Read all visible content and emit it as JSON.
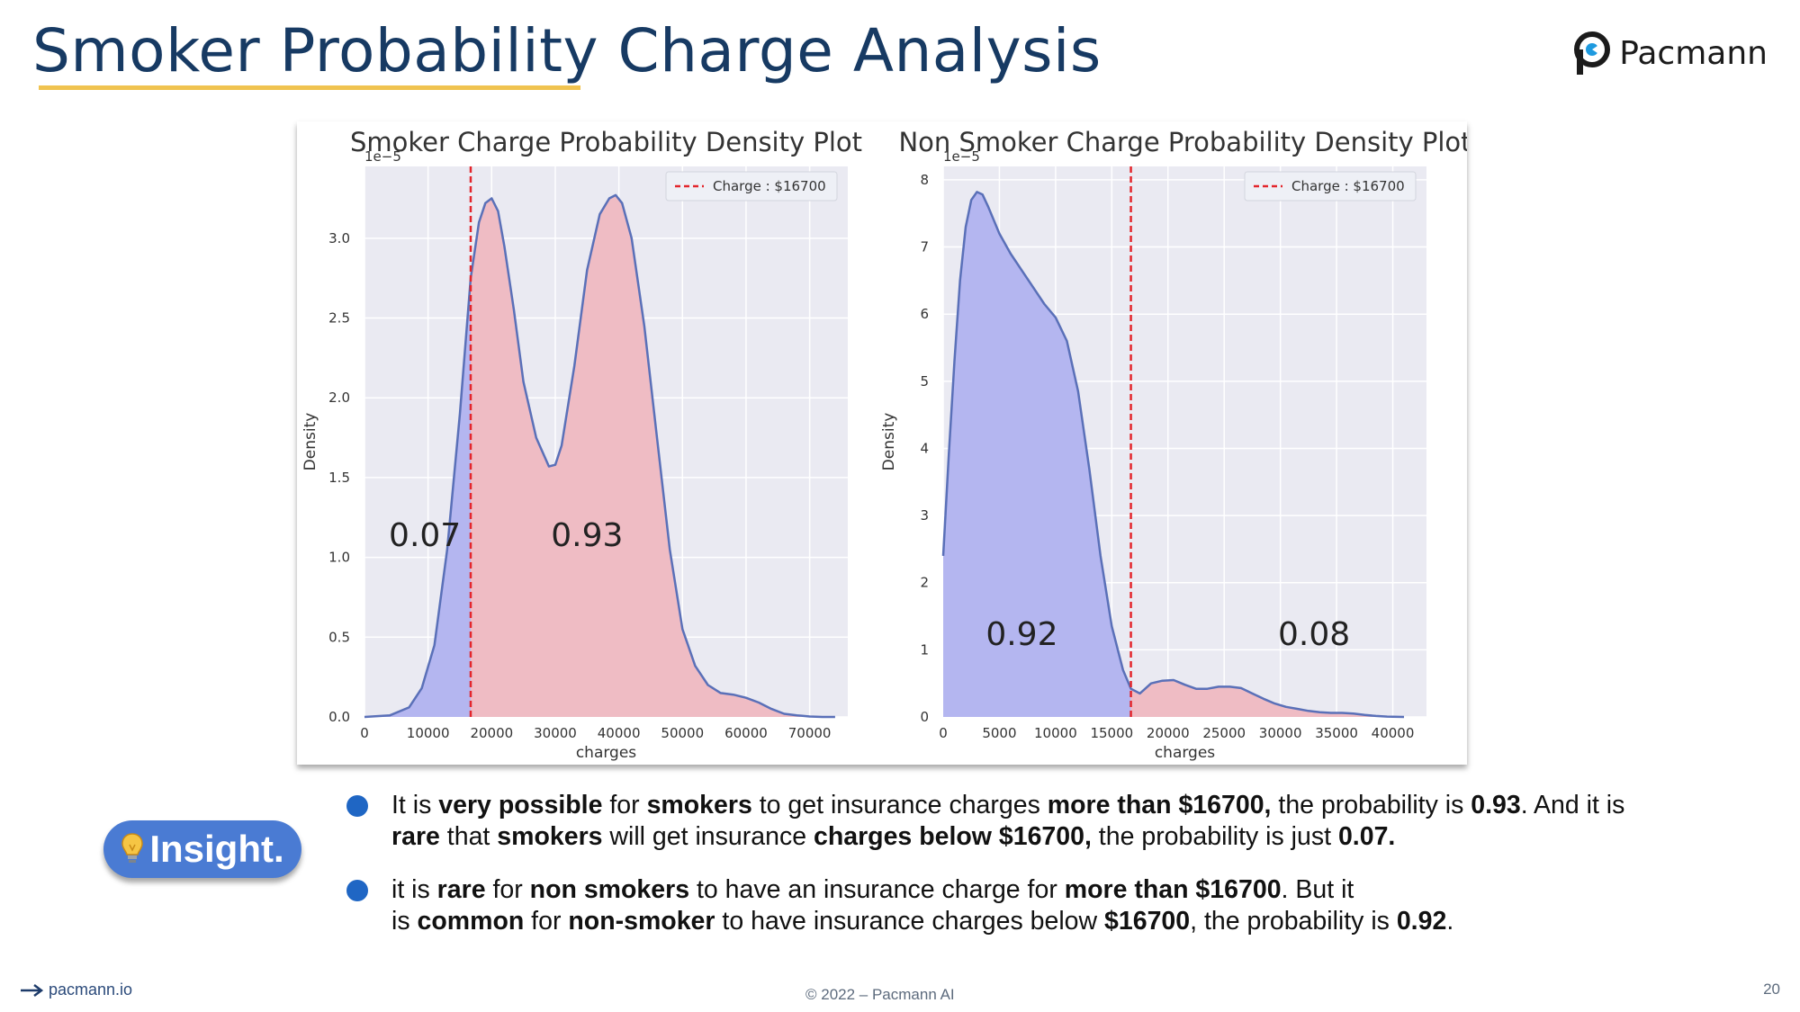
{
  "slide": {
    "title": "Smoker Probability Charge Analysis",
    "brand": "Pacmann",
    "insight_label": "Insight.",
    "footer_left": "pacmann.io",
    "footer_center": "© 2022 – Pacmann AI",
    "page_number": "20"
  },
  "bullets": [
    [
      {
        "t": "It is ",
        "b": false
      },
      {
        "t": "very possible",
        "b": true
      },
      {
        "t": " for ",
        "b": false
      },
      {
        "t": "smokers",
        "b": true
      },
      {
        "t": " to get insurance charges ",
        "b": false
      },
      {
        "t": "more than $16700,",
        "b": true
      },
      {
        "t": " the probability is ",
        "b": false
      },
      {
        "t": "0.93",
        "b": true
      },
      {
        "t": ". And it is ",
        "b": false
      },
      {
        "t": "rare",
        "b": true
      },
      {
        "t": " that ",
        "b": false
      },
      {
        "t": "smokers",
        "b": true
      },
      {
        "t": " will get insurance ",
        "b": false
      },
      {
        "t": "charges below $16700,",
        "b": true
      },
      {
        "t": " the probability is just ",
        "b": false
      },
      {
        "t": "0.07.",
        "b": true
      }
    ],
    [
      {
        "t": "it is ",
        "b": false
      },
      {
        "t": "rare",
        "b": true
      },
      {
        "t": " for ",
        "b": false
      },
      {
        "t": "non smokers",
        "b": true
      },
      {
        "t": " to have an insurance charge for ",
        "b": false
      },
      {
        "t": "more than $16700",
        "b": true
      },
      {
        "t": ". But it\nis ",
        "b": false
      },
      {
        "t": "common",
        "b": true
      },
      {
        "t": " for ",
        "b": false
      },
      {
        "t": "non-smoker",
        "b": true
      },
      {
        "t": " to have insurance charges below ",
        "b": false
      },
      {
        "t": "$16700",
        "b": true
      },
      {
        "t": ", the probability is ",
        "b": false
      },
      {
        "t": "0.92",
        "b": true
      },
      {
        "t": ".",
        "b": false
      }
    ]
  ],
  "colors": {
    "title": "#173a63",
    "underline": "#f0c350",
    "plot_bg": "#eaeaf2",
    "below_fill": "#b4b6f0",
    "above_fill": "#efbcc4",
    "curve": "#5a70b8",
    "vline": "#e3262c",
    "bullet": "#1f66c4",
    "insight": "#4a7bd3"
  },
  "chart_data": [
    {
      "type": "area",
      "title": "Smoker Charge Probability Density Plot",
      "xlabel": "charges",
      "ylabel": "Density",
      "y_scale_note": "1e−5",
      "xlim": [
        0,
        76000
      ],
      "ylim": [
        0,
        3.45
      ],
      "xticks": [
        0,
        10000,
        20000,
        30000,
        40000,
        50000,
        60000,
        70000
      ],
      "yticks": [
        0.0,
        0.5,
        1.0,
        1.5,
        2.0,
        2.5,
        3.0
      ],
      "ytick_labels": [
        "0.0",
        "0.5",
        "1.0",
        "1.5",
        "2.0",
        "2.5",
        "3.0"
      ],
      "grid": true,
      "legend": {
        "label": "Charge : $16700",
        "placement": "upper right"
      },
      "threshold": 16700,
      "annotations": [
        {
          "text": "0.07",
          "x": 9500,
          "y": 1.07
        },
        {
          "text": "0.93",
          "x": 35000,
          "y": 1.07
        }
      ],
      "series": [
        {
          "x": [
            0,
            4000,
            7000,
            9000,
            11000,
            13000,
            15000,
            16700,
            18000,
            19000,
            20000,
            21000,
            22000,
            23500,
            25000,
            27000,
            29000,
            30000,
            31000,
            33000,
            35000,
            37000,
            38500,
            39500,
            40500,
            42000,
            44000,
            46000,
            48000,
            50000,
            52000,
            54000,
            56000,
            58000,
            60000,
            62000,
            64000,
            66000,
            68000,
            70000,
            72000,
            74000
          ],
          "y": [
            0,
            0.01,
            0.06,
            0.18,
            0.45,
            1.05,
            1.9,
            2.75,
            3.1,
            3.22,
            3.25,
            3.17,
            2.95,
            2.55,
            2.1,
            1.75,
            1.57,
            1.58,
            1.7,
            2.2,
            2.8,
            3.15,
            3.25,
            3.27,
            3.22,
            3.0,
            2.45,
            1.75,
            1.05,
            0.55,
            0.32,
            0.2,
            0.15,
            0.14,
            0.12,
            0.09,
            0.05,
            0.02,
            0.01,
            0.003,
            0,
            0
          ]
        }
      ]
    },
    {
      "type": "area",
      "title": "Non Smoker Charge Probability Density Plot",
      "xlabel": "charges",
      "ylabel": "Density",
      "y_scale_note": "1e−5",
      "xlim": [
        0,
        43000
      ],
      "ylim": [
        0,
        8.2
      ],
      "xticks": [
        0,
        5000,
        10000,
        15000,
        20000,
        25000,
        30000,
        35000,
        40000
      ],
      "yticks": [
        0,
        1,
        2,
        3,
        4,
        5,
        6,
        7,
        8
      ],
      "ytick_labels": [
        "0",
        "1",
        "2",
        "3",
        "4",
        "5",
        "6",
        "7",
        "8"
      ],
      "grid": true,
      "legend": {
        "label": "Charge : $16700",
        "placement": "upper right"
      },
      "threshold": 16700,
      "annotations": [
        {
          "text": "0.92",
          "x": 7000,
          "y": 1.07
        },
        {
          "text": "0.08",
          "x": 33000,
          "y": 1.07
        }
      ],
      "series": [
        {
          "x": [
            0,
            500,
            1000,
            1500,
            2000,
            2500,
            3000,
            3500,
            4000,
            5000,
            6000,
            7000,
            8000,
            9000,
            10000,
            11000,
            12000,
            13000,
            14000,
            15000,
            16000,
            16700,
            17500,
            18500,
            19500,
            20500,
            21500,
            22500,
            23500,
            24500,
            25500,
            26500,
            27500,
            28500,
            29500,
            30500,
            31500,
            32500,
            33500,
            34500,
            35500,
            36500,
            37500,
            38500,
            39500,
            40500,
            41000
          ],
          "y": [
            2.4,
            3.9,
            5.3,
            6.5,
            7.3,
            7.7,
            7.82,
            7.78,
            7.6,
            7.2,
            6.9,
            6.65,
            6.4,
            6.15,
            5.95,
            5.6,
            4.85,
            3.7,
            2.4,
            1.35,
            0.7,
            0.42,
            0.35,
            0.5,
            0.54,
            0.55,
            0.48,
            0.42,
            0.42,
            0.45,
            0.45,
            0.43,
            0.35,
            0.27,
            0.2,
            0.15,
            0.12,
            0.09,
            0.07,
            0.06,
            0.06,
            0.05,
            0.03,
            0.015,
            0.005,
            0.001,
            0
          ]
        }
      ]
    }
  ]
}
